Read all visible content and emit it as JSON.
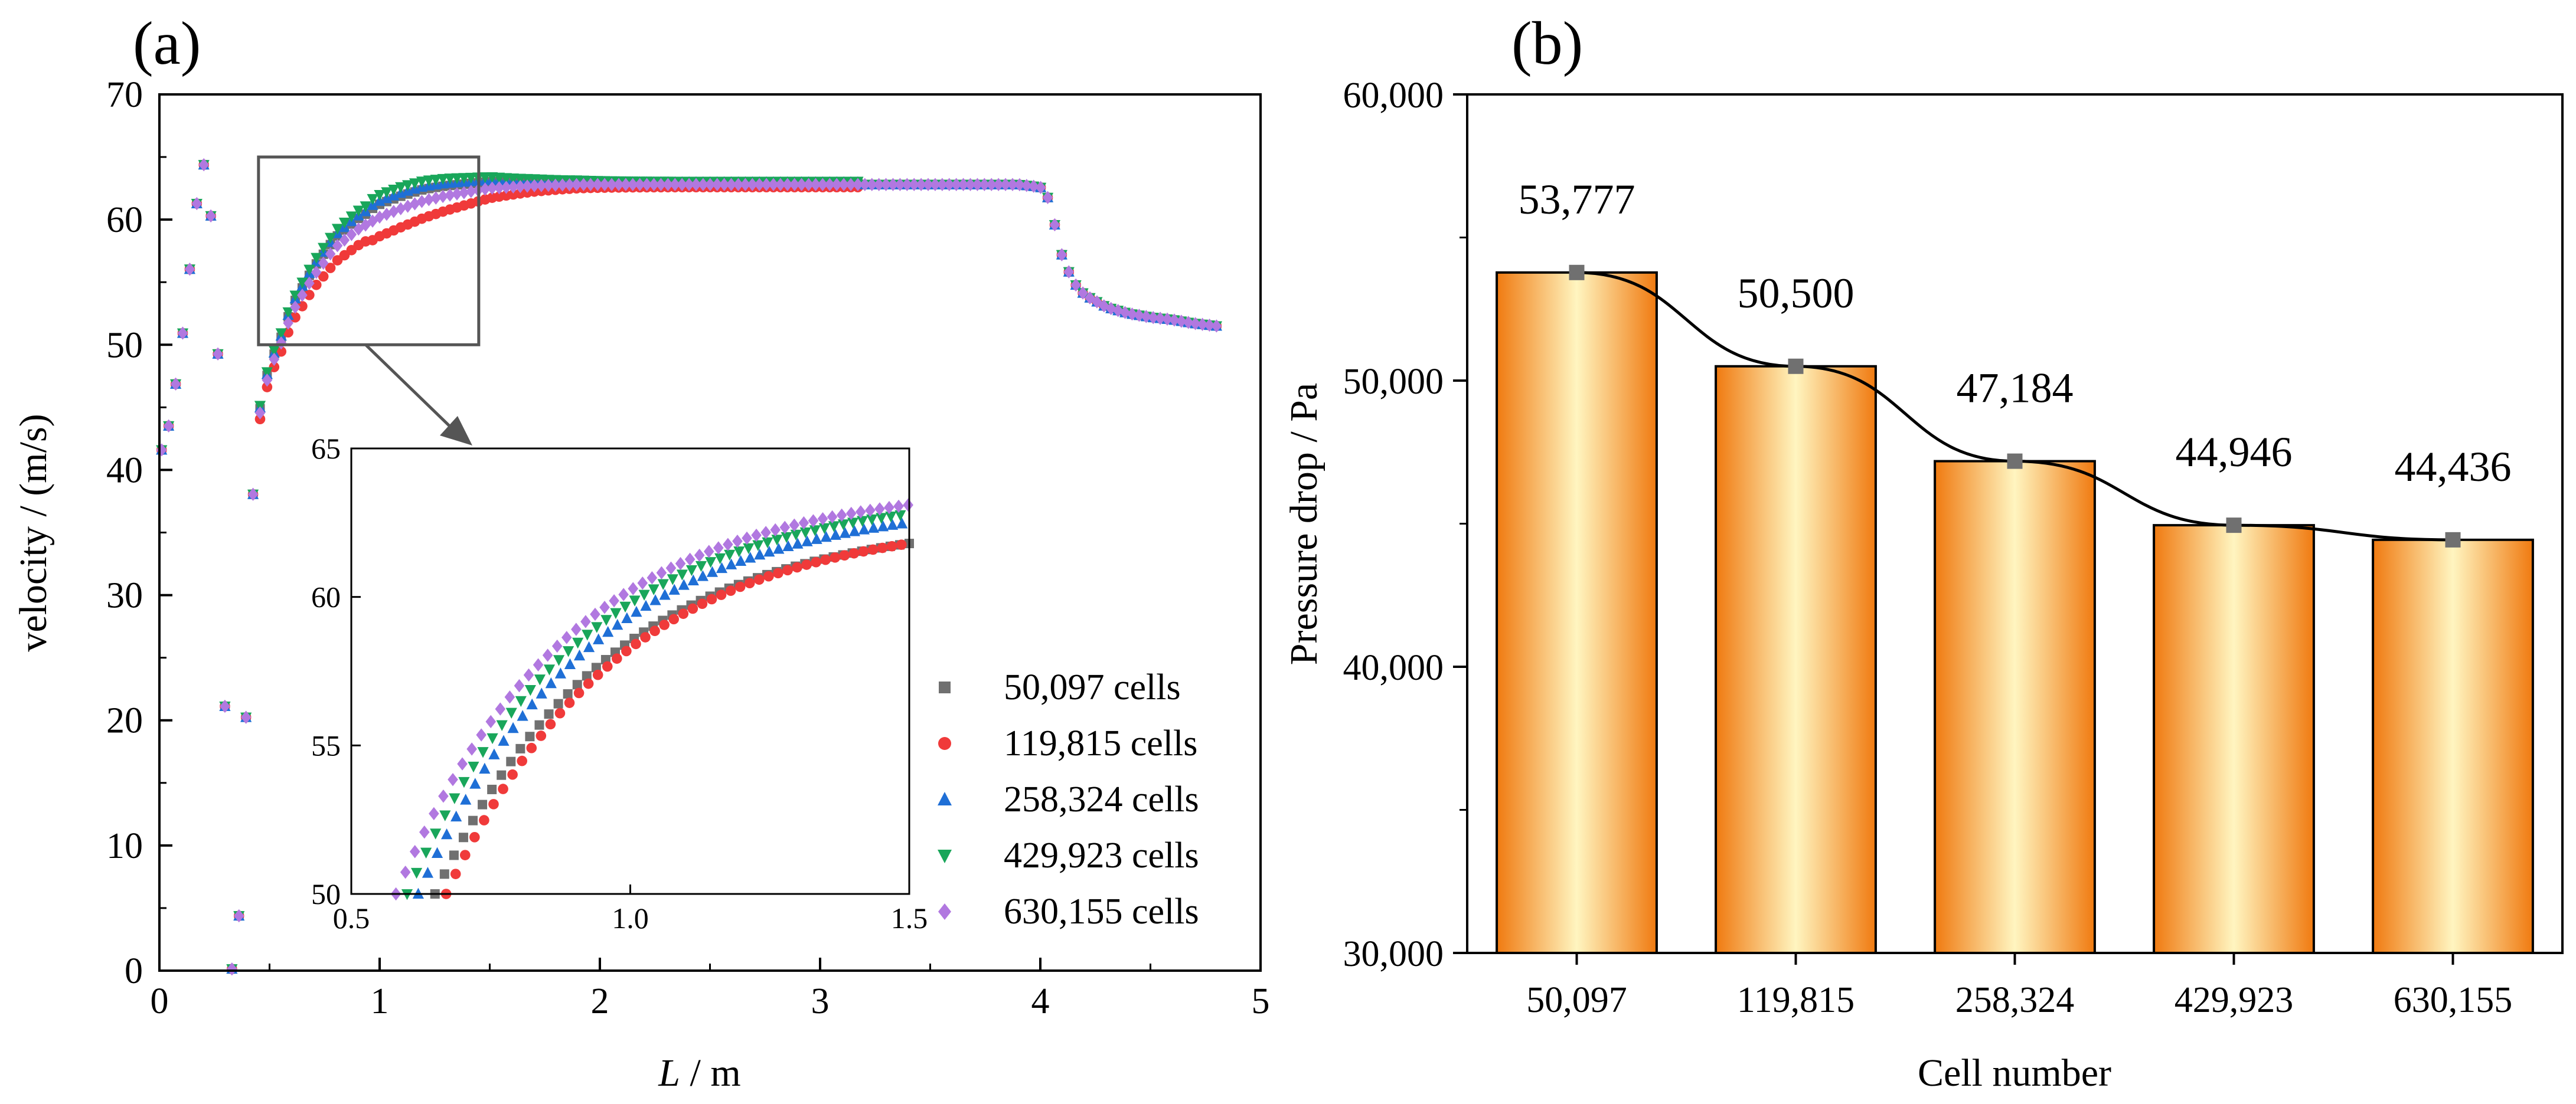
{
  "chart_data": [
    {
      "panel": "(a)",
      "type": "scatter",
      "xlabel_var": "L",
      "xlabel_unit": " / m",
      "ylabel": "velocity / (m/s)",
      "xlim": [
        0,
        5
      ],
      "ylim": [
        0,
        70
      ],
      "xticks": [
        "0",
        "1",
        "2",
        "3",
        "4",
        "5"
      ],
      "yticks": [
        "0",
        "10",
        "20",
        "30",
        "40",
        "50",
        "60",
        "70"
      ],
      "legend": [
        "50,097  cells",
        "119,815 cells",
        "258,324 cells",
        "429,923 cells",
        "630,155 cells"
      ],
      "series_colors": [
        "#707070",
        "#f03a3a",
        "#1f6fd6",
        "#19a65a",
        "#b178e0"
      ],
      "series_markers": [
        "square",
        "circle",
        "triangle-up",
        "triangle-down",
        "diamond"
      ],
      "profile": {
        "x": [
          0,
          0.05,
          0.1,
          0.15,
          0.18,
          0.2,
          0.22,
          0.25,
          0.27,
          0.29,
          0.3,
          0.31,
          0.32,
          0.33,
          0.34,
          0.35,
          0.36,
          0.37,
          0.38,
          0.39,
          0.4,
          0.41,
          0.42,
          0.43,
          0.44,
          0.46,
          0.5,
          0.55,
          0.6,
          0.7,
          0.8,
          0.9,
          1.0,
          1.1,
          1.2,
          1.3,
          1.4,
          1.5,
          1.7,
          1.9,
          2.2,
          2.5,
          2.8,
          3.1,
          3.4,
          3.7,
          3.9,
          4.0,
          4.03,
          4.06,
          4.1,
          4.15,
          4.2,
          4.3,
          4.4,
          4.5,
          4.6,
          4.7,
          4.8
        ],
        "y": [
          41,
          44,
          50,
          58,
          63,
          64.5,
          63,
          57,
          47,
          30,
          18,
          8,
          2,
          0,
          0,
          1,
          4,
          7,
          12,
          18,
          25,
          32,
          36,
          40,
          42,
          45,
          48,
          50,
          52.5,
          55.5,
          57.8,
          59.2,
          60.2,
          60.9,
          61.5,
          61.9,
          62.2,
          62.5,
          62.7,
          62.8,
          62.8,
          62.8,
          62.8,
          62.8,
          62.8,
          62.8,
          62.8,
          62.6,
          62,
          60,
          57,
          55,
          54,
          53,
          52.5,
          52.2,
          52,
          51.7,
          51.5
        ],
        "series_offsets": [
          0.4,
          -0.6,
          0.5,
          0.7,
          0
        ]
      },
      "inset": {
        "xlim": [
          0.5,
          1.5
        ],
        "ylim": [
          50,
          65
        ],
        "xticks": [
          "0.5",
          "1.0",
          "1.5"
        ],
        "yticks": [
          "50",
          "55",
          "60",
          "65"
        ],
        "series": [
          {
            "name": "50,097  cells",
            "start_x": 0.65,
            "end_y": 61.8
          },
          {
            "name": "119,815 cells",
            "start_x": 0.67,
            "end_y": 61.8
          },
          {
            "name": "258,324 cells",
            "start_x": 0.62,
            "end_y": 62.5
          },
          {
            "name": "429,923 cells",
            "start_x": 0.6,
            "end_y": 62.8
          },
          {
            "name": "630,155 cells",
            "start_x": 0.58,
            "end_y": 63.1
          }
        ],
        "zoom_box": {
          "x": [
            0.45,
            1.45
          ],
          "y": [
            50,
            65
          ]
        }
      }
    },
    {
      "panel": "(b)",
      "type": "bar",
      "xlabel": "Cell number",
      "ylabel": "Pressure drop / Pa",
      "ylim": [
        30000,
        60000
      ],
      "yticks": [
        "30,000",
        "40,000",
        "50,000",
        "60,000"
      ],
      "categories": [
        "50,097",
        "119,815",
        "258,324",
        "429,923",
        "630,155"
      ],
      "values": [
        53777,
        50500,
        47184,
        44946,
        44436
      ],
      "value_labels": [
        "53,777",
        "50,500",
        "47,184",
        "44,946",
        "44,436"
      ],
      "bar_color_edge": "#f07a10",
      "bar_color_center": "#fff5c0",
      "line_color": "#000000",
      "marker_color": "#707070"
    }
  ]
}
